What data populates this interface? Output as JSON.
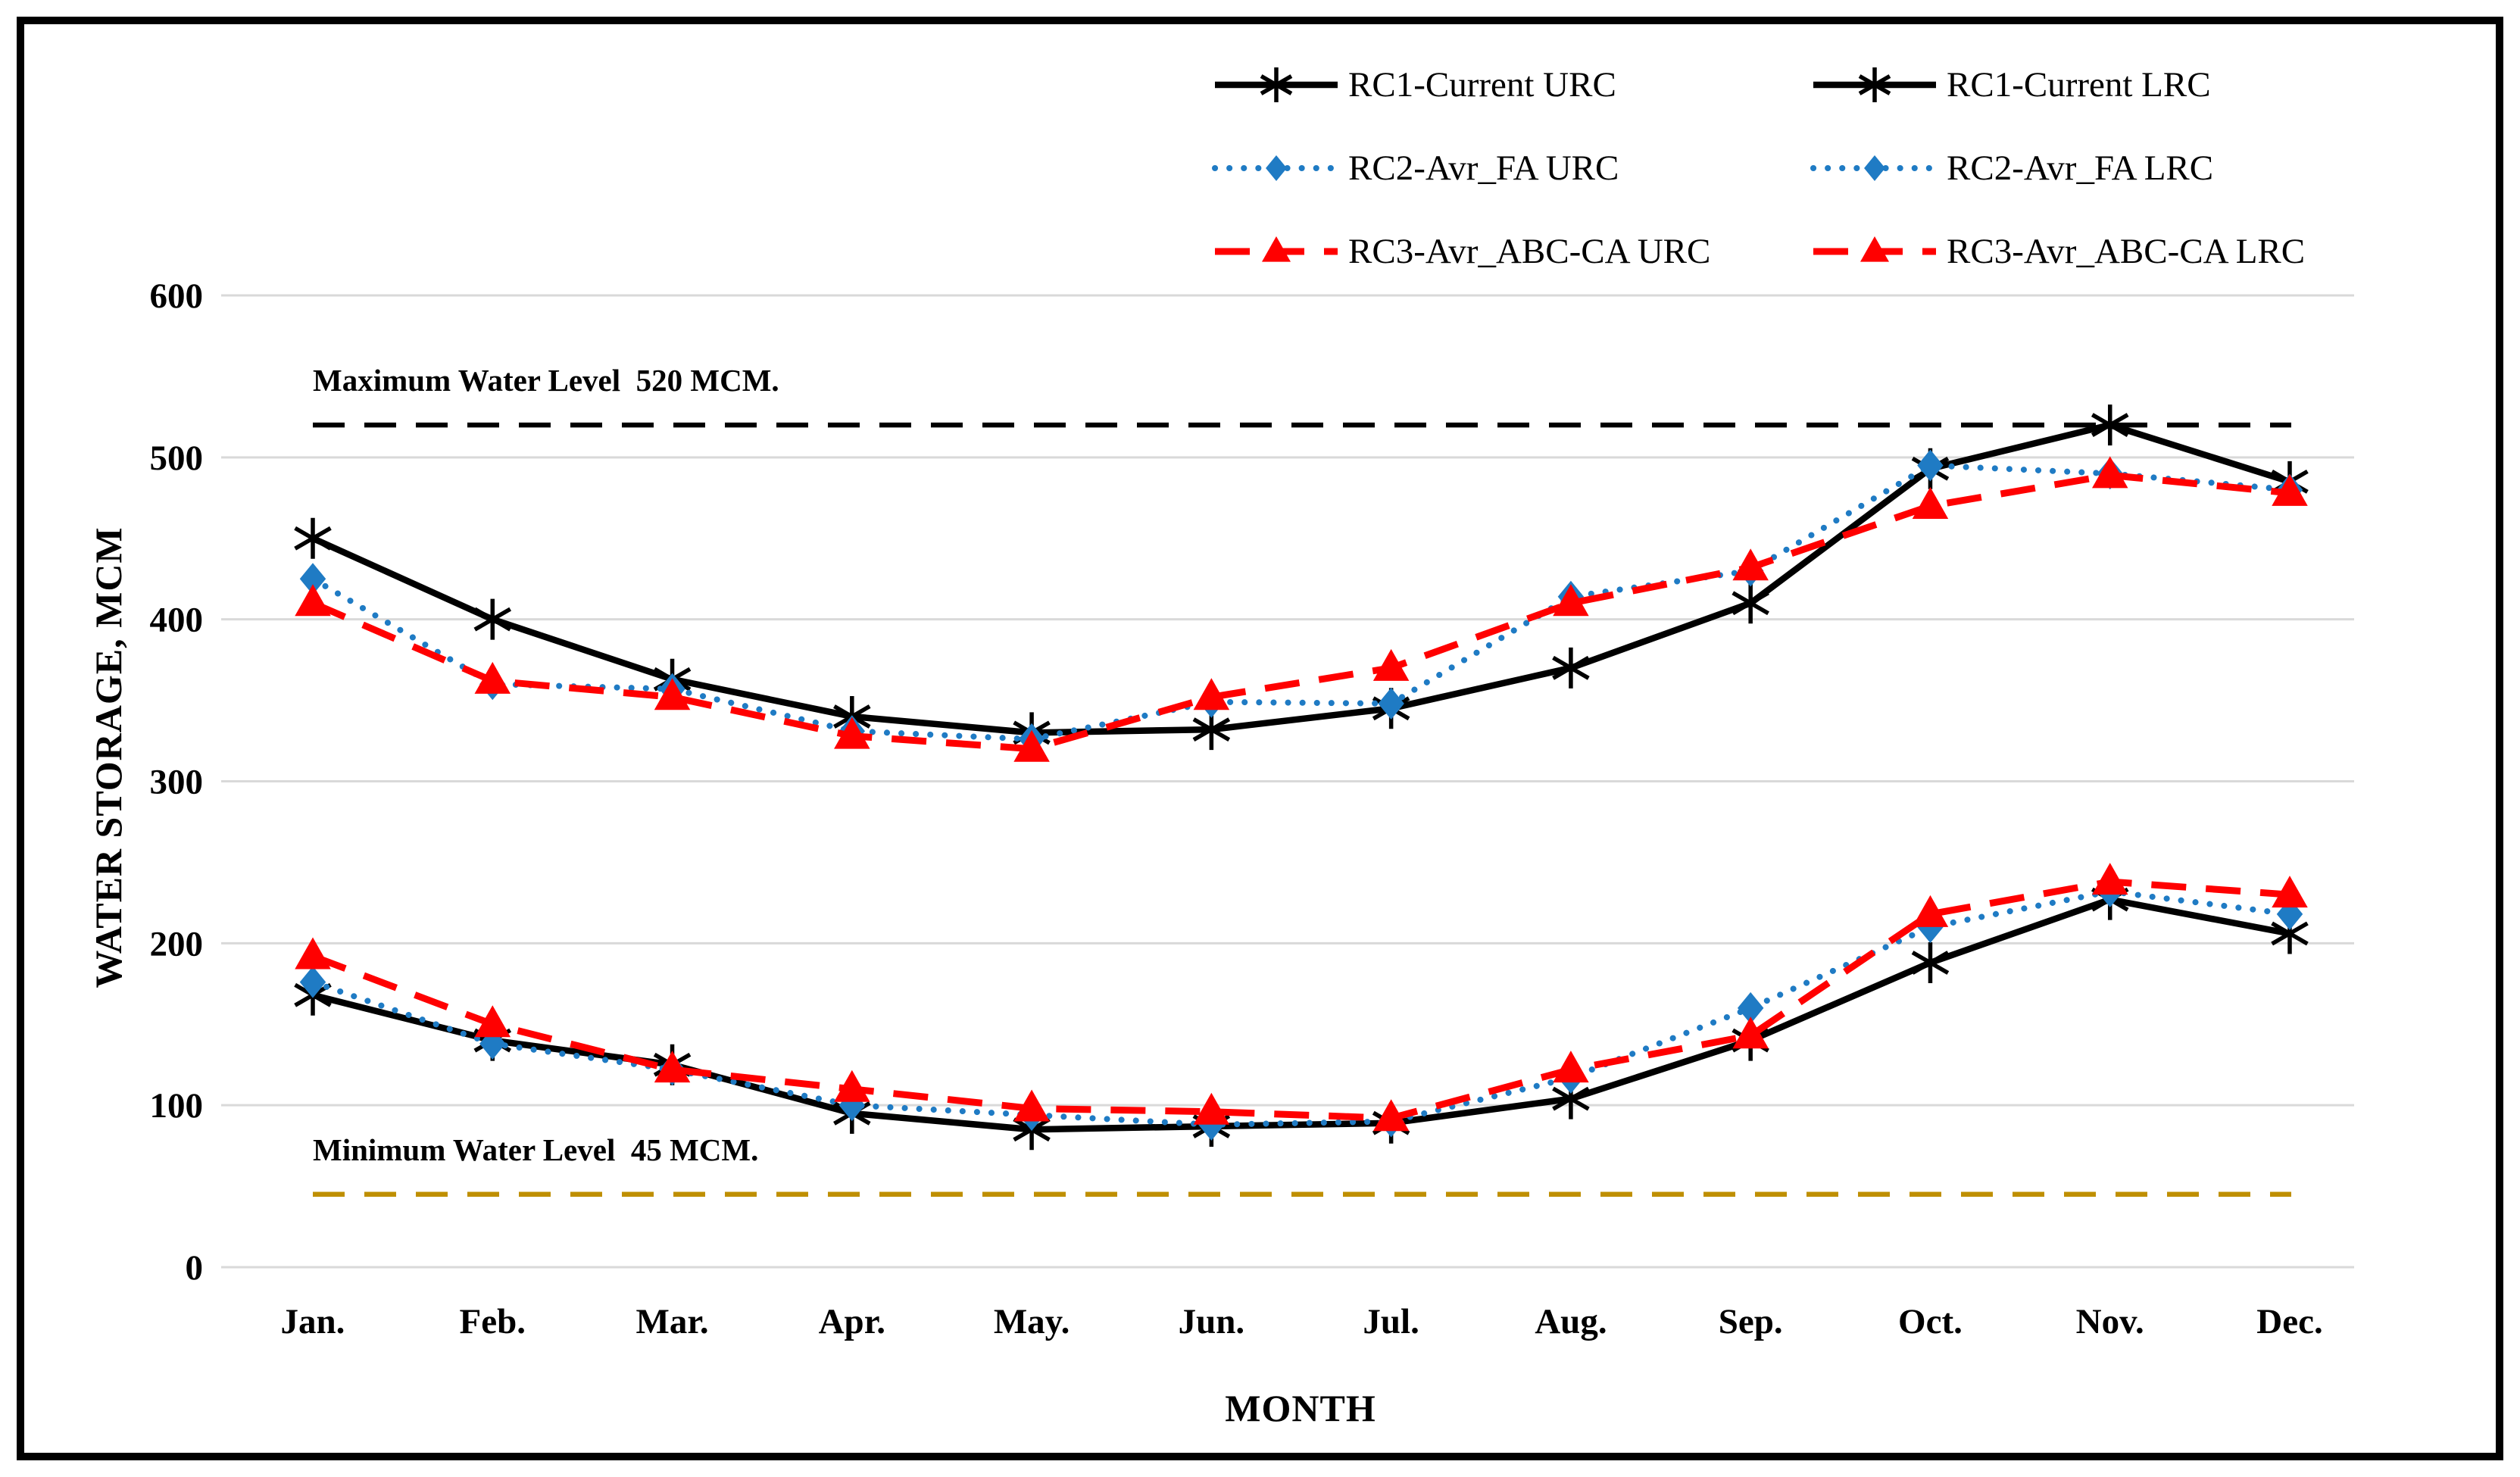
{
  "page": {
    "background": "#ffffff",
    "border_color": "#000000"
  },
  "chart_data": {
    "type": "line",
    "title": "",
    "xlabel": "MONTH",
    "ylabel": "WATER STORAGE, MCM",
    "ylim": [
      0,
      600
    ],
    "y_ticks": [
      0,
      100,
      200,
      300,
      400,
      500,
      600
    ],
    "grid": true,
    "grid_color": "#D9D9D9",
    "legend_position": "top-right, two columns",
    "categories": [
      "Jan.",
      "Feb.",
      "Mar.",
      "Apr.",
      "May.",
      "Jun.",
      "Jul.",
      "Aug.",
      "Sep.",
      "Oct.",
      "Nov.",
      "Dec."
    ],
    "series": [
      {
        "name": "RC1-Current URC",
        "color": "#000000",
        "line_style": "solid",
        "marker": "asterisk",
        "values": [
          450,
          400,
          363,
          340,
          330,
          332,
          345,
          370,
          410,
          493,
          520,
          485
        ]
      },
      {
        "name": "RC1-Current LRC",
        "color": "#000000",
        "line_style": "solid",
        "marker": "asterisk",
        "values": [
          168,
          140,
          125,
          95,
          85,
          87,
          89,
          104,
          140,
          188,
          227,
          206
        ]
      },
      {
        "name": "RC2-Avr_FA URC",
        "color": "#1F7BC4",
        "line_style": "dotted",
        "marker": "diamond",
        "values": [
          425,
          360,
          357,
          331,
          326,
          349,
          348,
          414,
          430,
          495,
          490,
          480
        ]
      },
      {
        "name": "RC2-Avr_FA LRC",
        "color": "#1F7BC4",
        "line_style": "dotted",
        "marker": "diamond",
        "values": [
          176,
          138,
          122,
          100,
          94,
          88,
          90,
          117,
          160,
          210,
          232,
          218
        ]
      },
      {
        "name": "RC3-Avr_ABC-CA URC",
        "color": "#FF0000",
        "line_style": "dashed",
        "marker": "triangle",
        "values": [
          410,
          362,
          352,
          328,
          320,
          352,
          370,
          410,
          432,
          470,
          489,
          478
        ]
      },
      {
        "name": "RC3-Avr_ABC-CA LRC",
        "color": "#FF0000",
        "line_style": "dashed",
        "marker": "triangle",
        "values": [
          192,
          150,
          122,
          110,
          98,
          96,
          92,
          122,
          143,
          218,
          238,
          230
        ]
      }
    ],
    "reference_lines": [
      {
        "label": "Maximum Water Level  520 MCM.",
        "value": 520,
        "color": "#000000",
        "style": "dashed"
      },
      {
        "label": "Minimum Water Level  45 MCM.",
        "value": 45,
        "color": "#BF8F00",
        "style": "dashed"
      }
    ]
  }
}
